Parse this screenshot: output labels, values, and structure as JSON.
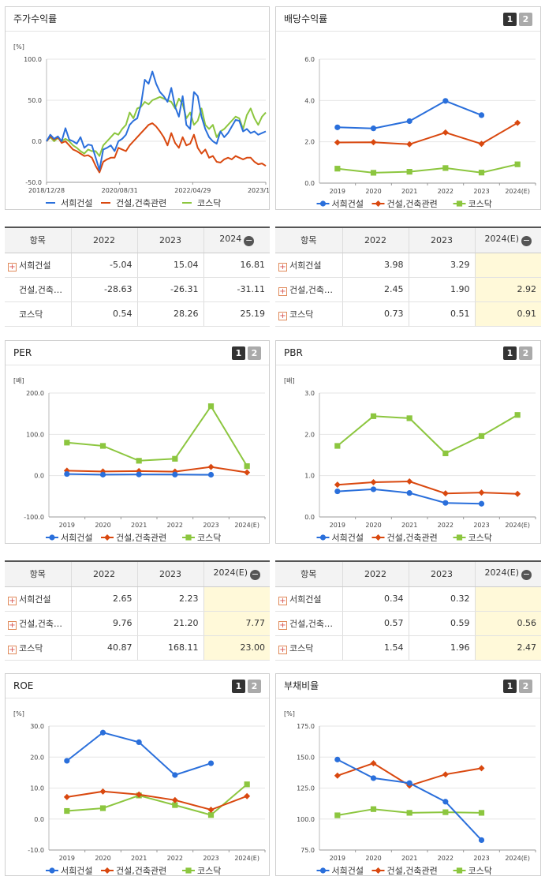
{
  "colors": {
    "company": "#2a6fdb",
    "industry": "#d9480f",
    "kosdaq": "#8cc63f"
  },
  "legend": [
    "서희건설",
    "건설,건축관련",
    "코스닥"
  ],
  "pager": [
    "1",
    "2"
  ],
  "stock_panel": {
    "title": "주가수익률",
    "unit": "[%]",
    "table": {
      "header": [
        "항목",
        "2022",
        "2023",
        "2024"
      ],
      "rows": [
        {
          "name": "서희건설",
          "expand": true,
          "values": [
            "-5.04",
            "15.04",
            "16.81"
          ]
        },
        {
          "name": "건설,건축…",
          "expand": false,
          "values": [
            "-28.63",
            "-26.31",
            "-31.11"
          ]
        },
        {
          "name": "코스닥",
          "expand": false,
          "values": [
            "0.54",
            "28.26",
            "25.19"
          ]
        }
      ]
    }
  },
  "dividend_panel": {
    "title": "배당수익률",
    "unit": "",
    "table": {
      "header": [
        "항목",
        "2022",
        "2023",
        "2024(E)"
      ],
      "rows": [
        {
          "name": "서희건설",
          "expand": true,
          "values": [
            "3.98",
            "3.29",
            ""
          ]
        },
        {
          "name": "건설,건축…",
          "expand": true,
          "values": [
            "2.45",
            "1.90",
            "2.92"
          ]
        },
        {
          "name": "코스닥",
          "expand": true,
          "values": [
            "0.73",
            "0.51",
            "0.91"
          ]
        }
      ]
    }
  },
  "per_panel": {
    "title": "PER",
    "unit": "[배]",
    "table": {
      "header": [
        "항목",
        "2022",
        "2023",
        "2024(E)"
      ],
      "rows": [
        {
          "name": "서희건설",
          "expand": true,
          "values": [
            "2.65",
            "2.23",
            ""
          ]
        },
        {
          "name": "건설,건축…",
          "expand": true,
          "values": [
            "9.76",
            "21.20",
            "7.77"
          ]
        },
        {
          "name": "코스닥",
          "expand": true,
          "values": [
            "40.87",
            "168.11",
            "23.00"
          ]
        }
      ]
    }
  },
  "pbr_panel": {
    "title": "PBR",
    "unit": "[배]",
    "table": {
      "header": [
        "항목",
        "2022",
        "2023",
        "2024(E)"
      ],
      "rows": [
        {
          "name": "서희건설",
          "expand": true,
          "values": [
            "0.34",
            "0.32",
            ""
          ]
        },
        {
          "name": "건설,건축…",
          "expand": true,
          "values": [
            "0.57",
            "0.59",
            "0.56"
          ]
        },
        {
          "name": "코스닥",
          "expand": true,
          "values": [
            "1.54",
            "1.96",
            "2.47"
          ]
        }
      ]
    }
  },
  "roe_panel": {
    "title": "ROE",
    "unit": "[%]"
  },
  "debt_panel": {
    "title": "부채비율",
    "unit": "[%]"
  },
  "chart_data": [
    {
      "id": "stock",
      "type": "line",
      "title": "주가수익률",
      "ylabel": "[%]",
      "ylim": [
        -50,
        100
      ],
      "yticks": [
        "100.0",
        "50.0",
        "0.0",
        "-50.0"
      ],
      "xticks": [
        "2018/12/28",
        "2020/08/31",
        "2022/04/29",
        "2023/12/28"
      ],
      "x_range": [
        "2018/12/28",
        "2023/12/28"
      ],
      "series": [
        {
          "name": "서희건설",
          "values": [
            0,
            8,
            3,
            6,
            0,
            16,
            2,
            0,
            -3,
            5,
            -8,
            -4,
            -5,
            -20,
            -35,
            -10,
            -8,
            -5,
            -12,
            0,
            3,
            8,
            20,
            25,
            28,
            45,
            75,
            70,
            85,
            70,
            60,
            55,
            48,
            65,
            42,
            30,
            55,
            20,
            15,
            60,
            55,
            30,
            15,
            5,
            0,
            -3,
            12,
            5,
            10,
            18,
            26,
            25,
            12,
            15,
            10,
            12,
            8,
            10,
            12
          ]
        },
        {
          "name": "건설,건축관련",
          "values": [
            0,
            6,
            2,
            5,
            -2,
            0,
            -5,
            -10,
            -12,
            -15,
            -18,
            -17,
            -20,
            -30,
            -38,
            -25,
            -22,
            -20,
            -20,
            -8,
            -10,
            -12,
            -5,
            0,
            5,
            10,
            15,
            20,
            22,
            18,
            12,
            5,
            -5,
            10,
            -2,
            -8,
            5,
            -5,
            -3,
            8,
            -8,
            -15,
            -10,
            -20,
            -18,
            -25,
            -26,
            -22,
            -20,
            -22,
            -18,
            -20,
            -22,
            -20,
            -20,
            -25,
            -28,
            -27,
            -30
          ]
        },
        {
          "name": "코스닥",
          "values": [
            0,
            5,
            0,
            4,
            0,
            3,
            0,
            -5,
            -8,
            -12,
            -15,
            -10,
            -12,
            -12,
            -18,
            -5,
            0,
            5,
            10,
            8,
            15,
            20,
            35,
            28,
            40,
            42,
            48,
            45,
            50,
            52,
            54,
            52,
            50,
            48,
            40,
            52,
            45,
            28,
            35,
            20,
            25,
            40,
            20,
            15,
            20,
            5,
            12,
            15,
            20,
            25,
            30,
            28,
            15,
            32,
            40,
            28,
            20,
            30,
            35
          ]
        }
      ]
    },
    {
      "id": "dividend",
      "type": "line",
      "title": "배당수익률",
      "ylim": [
        0,
        6
      ],
      "yticks": [
        "6.0",
        "4.0",
        "2.0",
        "0.0"
      ],
      "categories": [
        "2019",
        "2020",
        "2021",
        "2022",
        "2023",
        "2024(E)"
      ],
      "series": [
        {
          "name": "서희건설",
          "marker": "circle",
          "values": [
            2.7,
            2.65,
            3.0,
            3.98,
            3.29,
            null
          ]
        },
        {
          "name": "건설,건축관련",
          "marker": "diamond",
          "values": [
            1.97,
            1.98,
            1.88,
            2.45,
            1.9,
            2.92
          ]
        },
        {
          "name": "코스닥",
          "marker": "square",
          "values": [
            0.7,
            0.5,
            0.55,
            0.73,
            0.51,
            0.91
          ]
        }
      ]
    },
    {
      "id": "per",
      "type": "line",
      "title": "PER",
      "ylabel": "[배]",
      "ylim": [
        -100,
        200
      ],
      "yticks": [
        "200.0",
        "100.0",
        "0.0",
        "-100.0"
      ],
      "categories": [
        "2019",
        "2020",
        "2021",
        "2022",
        "2023",
        "2024(E)"
      ],
      "series": [
        {
          "name": "서희건설",
          "marker": "circle",
          "values": [
            4,
            2.5,
            3,
            2.65,
            2.23,
            null
          ]
        },
        {
          "name": "건설,건축관련",
          "marker": "diamond",
          "values": [
            12,
            10,
            11,
            9.76,
            21.2,
            7.77
          ]
        },
        {
          "name": "코스닥",
          "marker": "square",
          "values": [
            80,
            72,
            36,
            40.87,
            168.11,
            23.0
          ]
        }
      ]
    },
    {
      "id": "pbr",
      "type": "line",
      "title": "PBR",
      "ylabel": "[배]",
      "ylim": [
        0,
        3
      ],
      "yticks": [
        "3.0",
        "2.0",
        "1.0",
        "0.0"
      ],
      "categories": [
        "2019",
        "2020",
        "2021",
        "2022",
        "2023",
        "2024(E)"
      ],
      "series": [
        {
          "name": "서희건설",
          "marker": "circle",
          "values": [
            0.62,
            0.67,
            0.58,
            0.34,
            0.32,
            null
          ]
        },
        {
          "name": "건설,건축관련",
          "marker": "diamond",
          "values": [
            0.78,
            0.84,
            0.86,
            0.57,
            0.59,
            0.56
          ]
        },
        {
          "name": "코스닥",
          "marker": "square",
          "values": [
            1.72,
            2.44,
            2.39,
            1.54,
            1.96,
            2.47
          ]
        }
      ]
    },
    {
      "id": "roe",
      "type": "line",
      "title": "ROE",
      "ylabel": "[%]",
      "ylim": [
        -10,
        30
      ],
      "yticks": [
        "30.0",
        "20.0",
        "10.0",
        "0.0",
        "-10.0"
      ],
      "categories": [
        "2019",
        "2020",
        "2021",
        "2022",
        "2023",
        "2024(E)"
      ],
      "series": [
        {
          "name": "서희건설",
          "marker": "circle",
          "values": [
            18.8,
            27.9,
            24.8,
            14.2,
            18.0,
            null
          ]
        },
        {
          "name": "건설,건축관련",
          "marker": "diamond",
          "values": [
            7.1,
            8.9,
            7.9,
            6.1,
            3.0,
            7.4
          ]
        },
        {
          "name": "코스닥",
          "marker": "square",
          "values": [
            2.6,
            3.5,
            7.6,
            4.5,
            1.3,
            11.2
          ]
        }
      ]
    },
    {
      "id": "debt",
      "type": "line",
      "title": "부채비율",
      "ylabel": "[%]",
      "ylim": [
        75,
        175
      ],
      "yticks": [
        "175.0",
        "150.0",
        "125.0",
        "100.0",
        "75.0"
      ],
      "categories": [
        "2019",
        "2020",
        "2021",
        "2022",
        "2023",
        "2024(E)"
      ],
      "series": [
        {
          "name": "서희건설",
          "marker": "circle",
          "values": [
            148,
            133,
            129,
            114,
            83,
            null
          ]
        },
        {
          "name": "건설,건축관련",
          "marker": "diamond",
          "values": [
            135,
            145,
            127,
            136,
            141,
            null
          ]
        },
        {
          "name": "코스닥",
          "marker": "square",
          "values": [
            103,
            108,
            105,
            105.5,
            105,
            null
          ]
        }
      ]
    }
  ]
}
